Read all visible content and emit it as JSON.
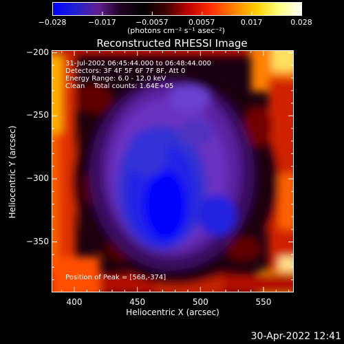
{
  "colorbar": {
    "tick_labels": [
      "−0.028",
      "−0.017",
      "−0.0057",
      "0.0057",
      "0.017",
      "0.028"
    ],
    "unit_label": "(photons cm⁻² s⁻¹ asec⁻²)",
    "range": [
      -0.028,
      0.028
    ],
    "colors": [
      "#0000ff",
      "#2020d0",
      "#602090",
      "#200020",
      "#000000",
      "#400000",
      "#c00000",
      "#ff3000",
      "#ff8000",
      "#ffd000",
      "#ffff80",
      "#ffffff"
    ]
  },
  "chart_data": {
    "type": "heatmap",
    "title": "Reconstructed RHESSI Image",
    "xlabel": "Heliocentric X (arcsec)",
    "ylabel": "Heliocentric Y (arcsec)",
    "xlim": [
      382,
      574
    ],
    "ylim": [
      -390,
      -198
    ],
    "x_ticks": [
      400,
      450,
      500,
      550
    ],
    "y_ticks": [
      -200,
      -250,
      -300,
      -350
    ],
    "x_tick_labels": [
      "400",
      "450",
      "500",
      "550"
    ],
    "y_tick_labels": [
      "−200",
      "−250",
      "−300",
      "−350"
    ],
    "info_lines": [
      "31-Jul-2002 06:45:44.000 to 06:48:44.000",
      "Detectors: 3F 4F 5F 6F 7F 8F, Att 0",
      "Energy Range: 6.0 - 12.0 keV",
      "Clean    Total counts: 1.64E+05"
    ],
    "peak_label": "Position of Peak = [568,-374]",
    "peak": [
      568,
      -374
    ]
  },
  "timestamp": "30-Apr-2022 12:41"
}
